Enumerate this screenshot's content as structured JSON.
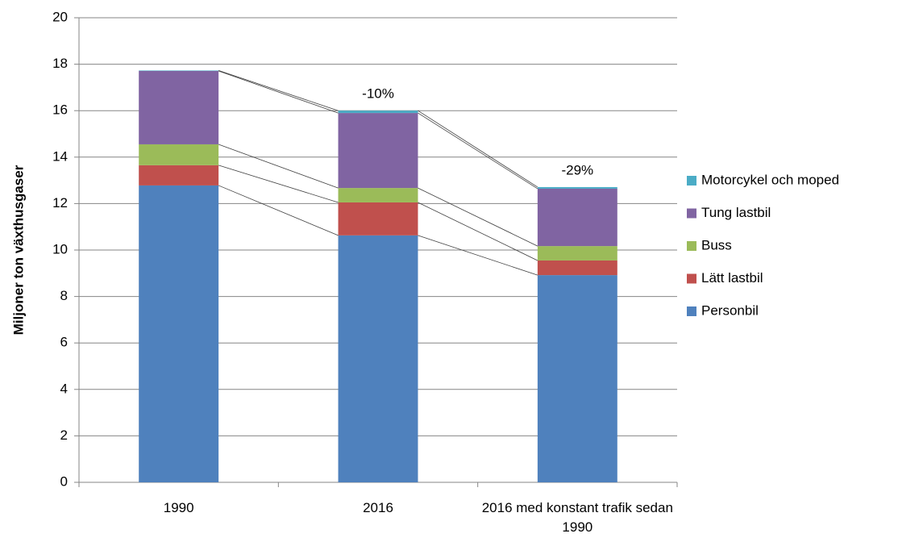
{
  "chart_data": {
    "type": "stacked_bar",
    "y_label": "Miljoner ton växthusgaser",
    "categories": [
      "1990",
      "2016",
      "2016 med konstant trafik sedan 1990"
    ],
    "series": [
      {
        "name": "Personbil",
        "color": "#4f81bd",
        "values": [
          12.78,
          10.63,
          8.92
        ]
      },
      {
        "name": "Lätt lastbil",
        "color": "#c0504d",
        "values": [
          0.87,
          1.42,
          0.63
        ]
      },
      {
        "name": "Buss",
        "color": "#9bbb59",
        "values": [
          0.9,
          0.62,
          0.62
        ]
      },
      {
        "name": "Tung lastbil",
        "color": "#8064a2",
        "values": [
          3.16,
          3.23,
          2.47
        ]
      },
      {
        "name": "Motorcykel och moped",
        "color": "#4bacc6",
        "values": [
          0.02,
          0.1,
          0.07
        ]
      }
    ],
    "annotations": [
      null,
      "-10%",
      "-29%"
    ],
    "ylim": [
      0,
      20
    ],
    "yticks": [
      0,
      2,
      4,
      6,
      8,
      10,
      12,
      14,
      16,
      18,
      20
    ],
    "grid": true
  }
}
